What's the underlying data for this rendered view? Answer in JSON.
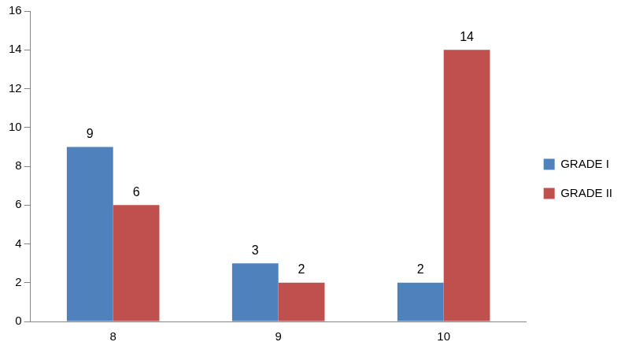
{
  "chart_data": {
    "type": "bar",
    "categories": [
      "8",
      "9",
      "10"
    ],
    "series": [
      {
        "name": "GRADE I",
        "color": "#4f81bd",
        "values": [
          9,
          3,
          2
        ]
      },
      {
        "name": "GRADE II",
        "color": "#c0504d",
        "values": [
          6,
          2,
          14
        ]
      }
    ],
    "ylim": [
      0,
      16
    ],
    "yticks": [
      0,
      2,
      4,
      6,
      8,
      10,
      12,
      14,
      16
    ],
    "grid": false,
    "legend": "right",
    "data_labels": true
  }
}
